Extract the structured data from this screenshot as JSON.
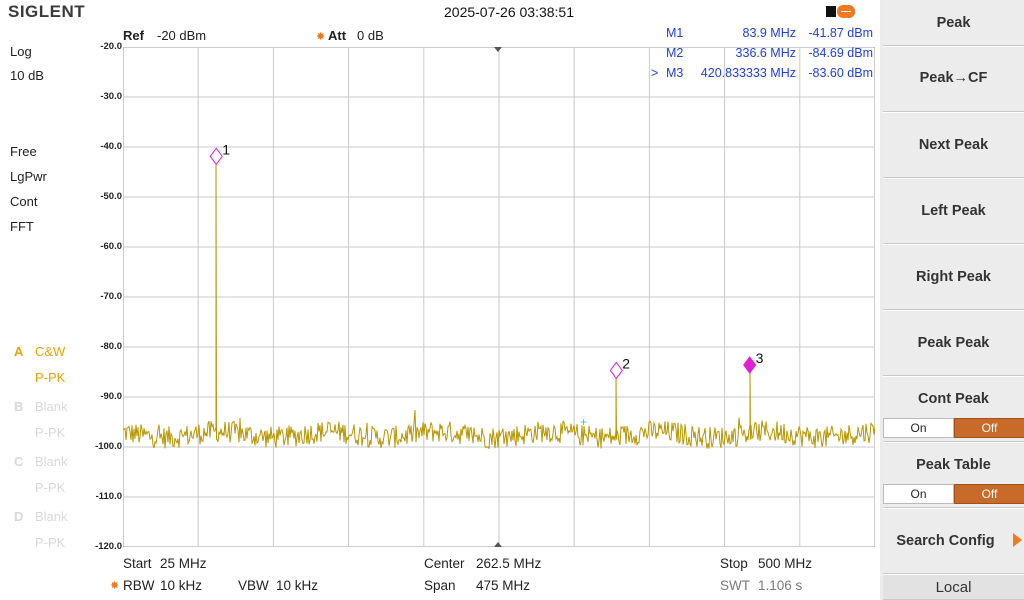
{
  "header": {
    "logo": "SIGLENT",
    "datetime": "2025-07-26 03:38:51"
  },
  "ref": {
    "ref_label": "Ref",
    "ref_value": "-20 dBm",
    "att_label": "Att",
    "att_value": "0 dB"
  },
  "left_info": {
    "scale_type": "Log",
    "scale_div": "10 dB",
    "trig": "Free",
    "det": "LgPwr",
    "sweep": "Cont",
    "mode": "FFT"
  },
  "traces": [
    {
      "letter": "A",
      "line1": "C&W",
      "line2": "P-PK",
      "active": true
    },
    {
      "letter": "B",
      "line1": "Blank",
      "line2": "P-PK",
      "active": false
    },
    {
      "letter": "C",
      "line1": "Blank",
      "line2": "P-PK",
      "active": false
    },
    {
      "letter": "D",
      "line1": "Blank",
      "line2": "P-PK",
      "active": false
    }
  ],
  "markers_table": [
    {
      "prefix": "",
      "name": "M1",
      "freq": "83.9 MHz",
      "amp": "-41.87 dBm"
    },
    {
      "prefix": "",
      "name": "M2",
      "freq": "336.6 MHz",
      "amp": "-84.69 dBm"
    },
    {
      "prefix": ">",
      "name": "M3",
      "freq": "420.833333 MHz",
      "amp": "-83.60 dBm"
    }
  ],
  "chart_data": {
    "type": "line",
    "xlim_mhz": [
      25,
      500
    ],
    "ylim_dbm": [
      -120,
      -20
    ],
    "y_ticks": [
      "-20.0",
      "-30.0",
      "-40.0",
      "-50.0",
      "-60.0",
      "-70.0",
      "-80.0",
      "-90.0",
      "-100.0",
      "-110.0",
      "-120.0"
    ],
    "noise_floor_dbm": -97.5,
    "peaks": [
      {
        "freq_mhz": 83.9,
        "amp_dbm": -41.87
      },
      {
        "freq_mhz": 336.6,
        "amp_dbm": -84.69
      },
      {
        "freq_mhz": 420.833333,
        "amp_dbm": -83.6
      }
    ],
    "markers": [
      {
        "label": "1",
        "freq_mhz": 83.9,
        "amp_dbm": -41.87,
        "filled": false
      },
      {
        "label": "2",
        "freq_mhz": 336.6,
        "amp_dbm": -84.69,
        "filled": false
      },
      {
        "label": "3",
        "freq_mhz": 420.833333,
        "amp_dbm": -83.6,
        "filled": true
      }
    ],
    "grid": true,
    "trace_color": "#b89600",
    "grid_color": "#c9c9c9"
  },
  "bottom": {
    "start_label": "Start",
    "start_value": "25 MHz",
    "center_label": "Center",
    "center_value": "262.5 MHz",
    "stop_label": "Stop",
    "stop_value": "500 MHz",
    "rbw_label": "RBW",
    "rbw_value": "10 kHz",
    "vbw_label": "VBW",
    "vbw_value": "10 kHz",
    "span_label": "Span",
    "span_value": "475 MHz",
    "swt_label": "SWT",
    "swt_value": "1.106 s"
  },
  "menu": {
    "title": "Peak",
    "peak_cf": "Peak→CF",
    "next_peak": "Next Peak",
    "left_peak": "Left Peak",
    "right_peak": "Right Peak",
    "peak_peak": "Peak Peak",
    "cont_peak": "Cont Peak",
    "peak_table": "Peak Table",
    "on": "On",
    "off": "Off",
    "search_config": "Search Config",
    "local": "Local"
  },
  "colors": {
    "accent": "#f07a22",
    "marker": "#e020d0",
    "marker_text": "#1f3fe0"
  }
}
